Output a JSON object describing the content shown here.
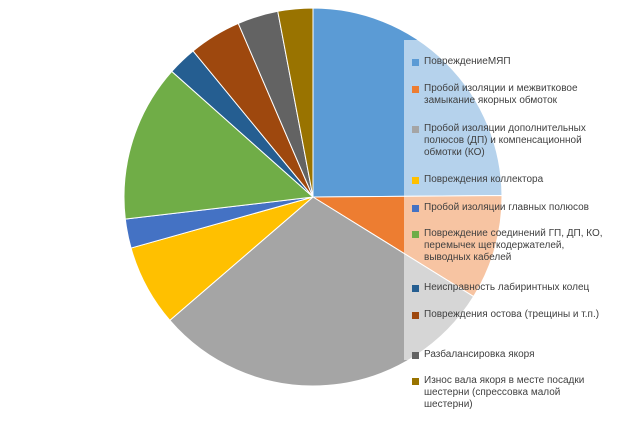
{
  "chart_data": {
    "type": "pie",
    "title": "",
    "legend_position": "right",
    "slices": [
      {
        "label": "ПовреждениеМЯП",
        "value": 25,
        "color": "#5b9bd5"
      },
      {
        "label": "Пробой изоляции и межвитковое замыкание якорных обмоток",
        "value": 9,
        "color": "#ed7d31"
      },
      {
        "label": "Пробой изоляции дополнительных полюсов (ДП) и компенсационной обмотки (КО)",
        "value": 30,
        "color": "#a5a5a5"
      },
      {
        "label": "Повреждения коллектора",
        "value": 7,
        "color": "#ffc000"
      },
      {
        "label": "Пробой изоляции главных полюсов",
        "value": 2.5,
        "color": "#4472c4"
      },
      {
        "label": "Повреждение соединений ГП, ДП, КО, перемычек щеткодержателей, выводных кабелей",
        "value": 13.5,
        "color": "#70ad47"
      },
      {
        "label": "Неисправность лабиринтных колец",
        "value": 2.5,
        "color": "#255e91"
      },
      {
        "label": "Повреждения остова (трещины и т.п.)",
        "value": 4.5,
        "color": "#9e480e"
      },
      {
        "label": "Разбалансировка якоря",
        "value": 3.5,
        "color": "#636363"
      },
      {
        "label": "Износ вала якоря в месте посадки шестерни (спрессовка малой шестерни)",
        "value": 3,
        "color": "#997300"
      }
    ]
  }
}
